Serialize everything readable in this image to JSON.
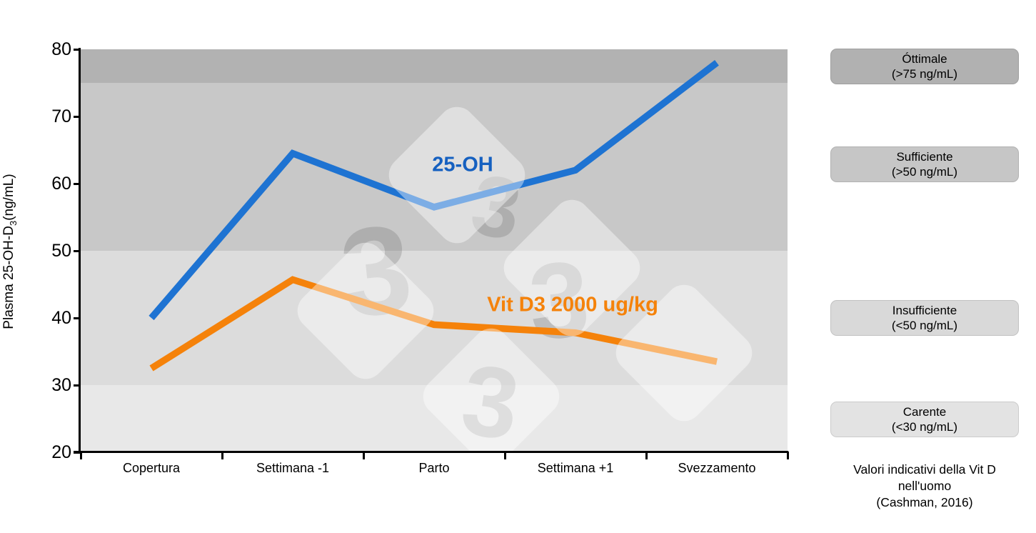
{
  "chart_data": {
    "type": "line",
    "title": "",
    "categories": [
      "Copertura",
      "Settimana -1",
      "Parto",
      "Settimana +1",
      "Svezzamento"
    ],
    "series": [
      {
        "name": "25-OH",
        "color": "#1e73d2",
        "label_color": "#1560c0",
        "values": [
          40,
          64.5,
          56.5,
          62,
          78
        ]
      },
      {
        "name": "Vit D3 2000 ug/kg",
        "color": "#f5820a",
        "label_color": "#f5820a",
        "values": [
          32.5,
          45.7,
          39,
          37.8,
          33.5
        ]
      }
    ],
    "ylabel": {
      "main": "Plasma 25-OH-D",
      "sub": "3",
      "unit": "(ng/mL)"
    },
    "ylim": [
      20,
      80
    ],
    "yticks": [
      80,
      70,
      60,
      50,
      40,
      30,
      20
    ],
    "grid": false,
    "legend_position": "right",
    "bands": [
      {
        "label": "Óttimale (>75 ng/mL)",
        "from": 75,
        "to": 80,
        "color": "#b2b2b2"
      },
      {
        "label": "Sufficiente (>50 ng/mL)",
        "from": 50,
        "to": 75,
        "color": "#c8c8c8"
      },
      {
        "label": "Insufficiente (<50 ng/mL)",
        "from": 30,
        "to": 50,
        "color": "#dcdcdc"
      },
      {
        "label": "Carente (<30 ng/mL)",
        "from": 20,
        "to": 30,
        "color": "#e8e8e8"
      }
    ]
  },
  "legend_panel": {
    "items": [
      {
        "title": "Óttimale",
        "range": "(>75 ng/mL)",
        "color": "#b1b1b1"
      },
      {
        "title": "Sufficiente",
        "range": "(>50 ng/mL)",
        "color": "#c6c6c6"
      },
      {
        "title": "Insufficiente",
        "range": "(<50 ng/mL)",
        "color": "#d9d9d9"
      },
      {
        "title": "Carente",
        "range": "(<30 ng/mL)",
        "color": "#e3e3e3"
      }
    ],
    "caption_lines": [
      "Valori indicativi della Vit D",
      "nell'uomo",
      "(Cashman, 2016)"
    ]
  },
  "watermark": {
    "glyph": "3"
  }
}
